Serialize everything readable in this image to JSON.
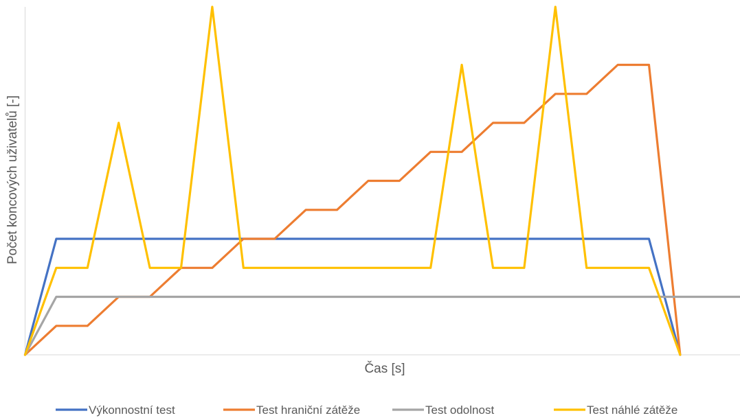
{
  "chart_data": {
    "type": "line",
    "xlabel": "Čas [s]",
    "ylabel": "Počet koncových uživatelů [-]",
    "grid": false,
    "legend_position": "bottom",
    "x": [
      0,
      1,
      2,
      3,
      4,
      5,
      6,
      7,
      8,
      9,
      10,
      11,
      12,
      13,
      14,
      15,
      16,
      17,
      18,
      19,
      20,
      21,
      22,
      23
    ],
    "xlim": [
      0,
      23
    ],
    "ylim": [
      0,
      12
    ],
    "series": [
      {
        "name": "Výkonnostní test",
        "color": "#4472C4",
        "points": [
          [
            0,
            0
          ],
          [
            1,
            4
          ],
          [
            20,
            4
          ],
          [
            21,
            0
          ]
        ]
      },
      {
        "name": "Test hraniční zátěže",
        "color": "#ED7D31",
        "points": [
          [
            0,
            0
          ],
          [
            1,
            1
          ],
          [
            2,
            1
          ],
          [
            3,
            2
          ],
          [
            4,
            2
          ],
          [
            5,
            3
          ],
          [
            6,
            3
          ],
          [
            7,
            4
          ],
          [
            8,
            4
          ],
          [
            9,
            5
          ],
          [
            10,
            5
          ],
          [
            11,
            6
          ],
          [
            12,
            6
          ],
          [
            13,
            7
          ],
          [
            14,
            7
          ],
          [
            15,
            8
          ],
          [
            16,
            8
          ],
          [
            17,
            9
          ],
          [
            18,
            9
          ],
          [
            19,
            10
          ],
          [
            20,
            10
          ],
          [
            21,
            0
          ]
        ]
      },
      {
        "name": "Test odolnost",
        "color": "#A5A5A5",
        "points": [
          [
            0,
            0
          ],
          [
            1,
            2
          ],
          [
            23,
            2
          ]
        ]
      },
      {
        "name": "Test náhlé zátěže",
        "color": "#FFC000",
        "points": [
          [
            0,
            0
          ],
          [
            1,
            3
          ],
          [
            2,
            3
          ],
          [
            3,
            8
          ],
          [
            4,
            3
          ],
          [
            5,
            3
          ],
          [
            6,
            12
          ],
          [
            7,
            3
          ],
          [
            13,
            3
          ],
          [
            14,
            10
          ],
          [
            15,
            3
          ],
          [
            16,
            3
          ],
          [
            17,
            12
          ],
          [
            18,
            3
          ],
          [
            20,
            3
          ],
          [
            21,
            0
          ]
        ]
      }
    ]
  }
}
